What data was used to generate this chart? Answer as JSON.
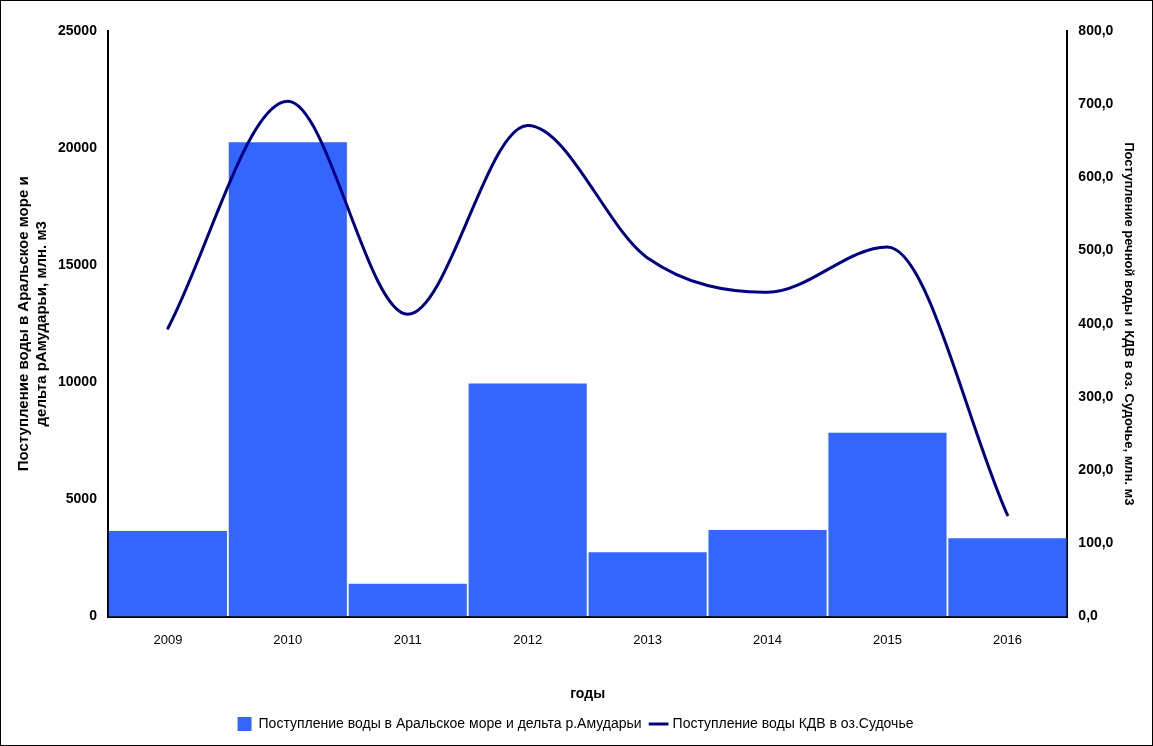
{
  "chart_data": {
    "type": "bar",
    "xlabel": "годы",
    "ylabel": "Поступление воды в Аральское море и дельта рАмударьи, млн. м3",
    "y2label": "Поступление речной воды и КДВ в оз. Судочье, млн. м3",
    "categories": [
      "2009",
      "2010",
      "2011",
      "2012",
      "2013",
      "2014",
      "2015",
      "2016"
    ],
    "series": [
      {
        "name": "Поступление воды в Аральское море и дельта р.Амударьи",
        "color": "#3366ff",
        "values": [
          3650,
          20250,
          1400,
          9950,
          2750,
          3700,
          7850,
          3350
        ]
      },
      {
        "name": "Поступление воды КДВ в оз.Судочье",
        "type": "line",
        "axis": "y2",
        "color": "#000080",
        "values": [
          394,
          704,
          413,
          671,
          490,
          443,
          505,
          139
        ]
      }
    ],
    "ylim": [
      0,
      25000
    ],
    "yticks": [
      0,
      5000,
      10000,
      15000,
      20000,
      25000
    ],
    "y2lim": [
      0,
      800
    ],
    "y2ticks": [
      {
        "value": 0,
        "label": "0,0"
      },
      {
        "value": 100,
        "label": "100,0"
      },
      {
        "value": 200,
        "label": "200,0"
      },
      {
        "value": 300,
        "label": "300,0"
      },
      {
        "value": 400,
        "label": "400,0"
      },
      {
        "value": 500,
        "label": "500,0"
      },
      {
        "value": 600,
        "label": "600,0"
      },
      {
        "value": 700,
        "label": "700,0"
      },
      {
        "value": 800,
        "label": "800,0"
      }
    ],
    "grid": false,
    "legend": "bottom",
    "marker": "none",
    "line_style": "solid"
  }
}
